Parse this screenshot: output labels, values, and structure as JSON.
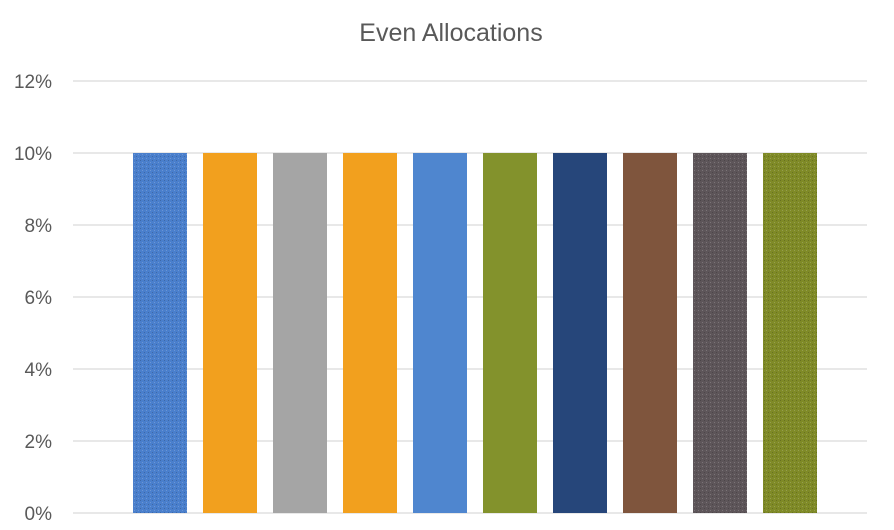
{
  "chart_data": {
    "type": "bar",
    "title": "Even Allocations",
    "xlabel": "",
    "ylabel": "",
    "categories": [
      "",
      "",
      "",
      "",
      "",
      "",
      "",
      "",
      "",
      ""
    ],
    "values": [
      0.1,
      0.1,
      0.1,
      0.1,
      0.1,
      0.1,
      0.1,
      0.1,
      0.1,
      0.1
    ],
    "ylim": [
      0,
      0.12
    ],
    "y_ticks": [
      0,
      0.02,
      0.04,
      0.06,
      0.08,
      0.1,
      0.12
    ],
    "y_tick_labels": [
      "0%",
      "2%",
      "4%",
      "6%",
      "8%",
      "10%",
      "12%"
    ],
    "grid": true,
    "legend": "none",
    "bar_colors": [
      "#4a7fcc",
      "#f2a01e",
      "#a5a5a5",
      "#f2a01e",
      "#4f86cf",
      "#83922c",
      "#26467a",
      "#7f553d",
      "#5d5559",
      "#7f8a27"
    ],
    "bar_textured": [
      true,
      false,
      false,
      false,
      false,
      false,
      false,
      false,
      true,
      true
    ]
  }
}
